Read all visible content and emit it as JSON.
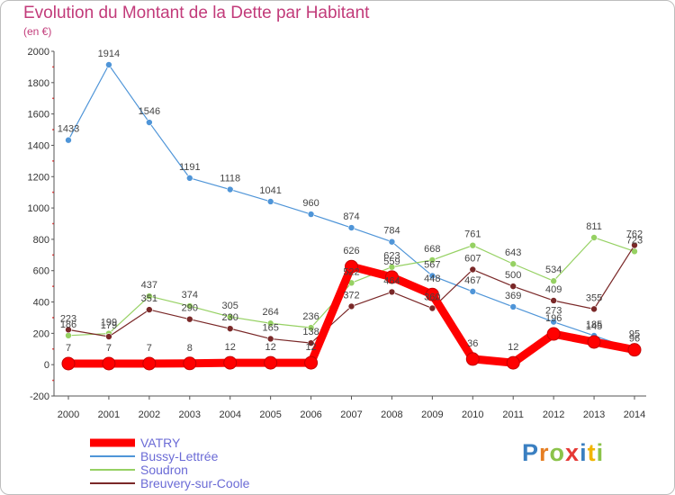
{
  "title": "Evolution du Montant de la Dette par Habitant",
  "unit": "(en €)",
  "logo_text": "Proxiti",
  "chart_data": {
    "type": "line",
    "title": "Evolution du Montant de la Dette par Habitant",
    "ylabel": "(en €)",
    "xlabel": "",
    "ylim": [
      -200,
      2000
    ],
    "yticks": [
      -200,
      0,
      200,
      400,
      600,
      800,
      1000,
      1200,
      1400,
      1600,
      1800,
      2000
    ],
    "x": [
      2000,
      2001,
      2002,
      2003,
      2004,
      2005,
      2006,
      2007,
      2008,
      2009,
      2010,
      2011,
      2012,
      2013,
      2014
    ],
    "grid": false,
    "legend_position": "bottom-left",
    "series": [
      {
        "name": "VATRY",
        "color": "#ff0000",
        "values": [
          7,
          7,
          7,
          8,
          12,
          12,
          12,
          626,
          559,
          448,
          36,
          12,
          196,
          145,
          95
        ]
      },
      {
        "name": "Bussy-Lettrée",
        "color": "#4f95d8",
        "values": [
          1433,
          1914,
          1546,
          1191,
          1118,
          1041,
          960,
          874,
          784,
          567,
          467,
          369,
          273,
          185,
          96
        ]
      },
      {
        "name": "Soudron",
        "color": "#96d163",
        "values": [
          186,
          199,
          437,
          374,
          305,
          264,
          236,
          522,
          623,
          668,
          761,
          643,
          534,
          811,
          723
        ]
      },
      {
        "name": "Breuvery-sur-Coole",
        "color": "#7a2828",
        "values": [
          223,
          179,
          351,
          290,
          230,
          165,
          138,
          372,
          464,
          360,
          607,
          500,
          409,
          355,
          762
        ]
      }
    ]
  }
}
